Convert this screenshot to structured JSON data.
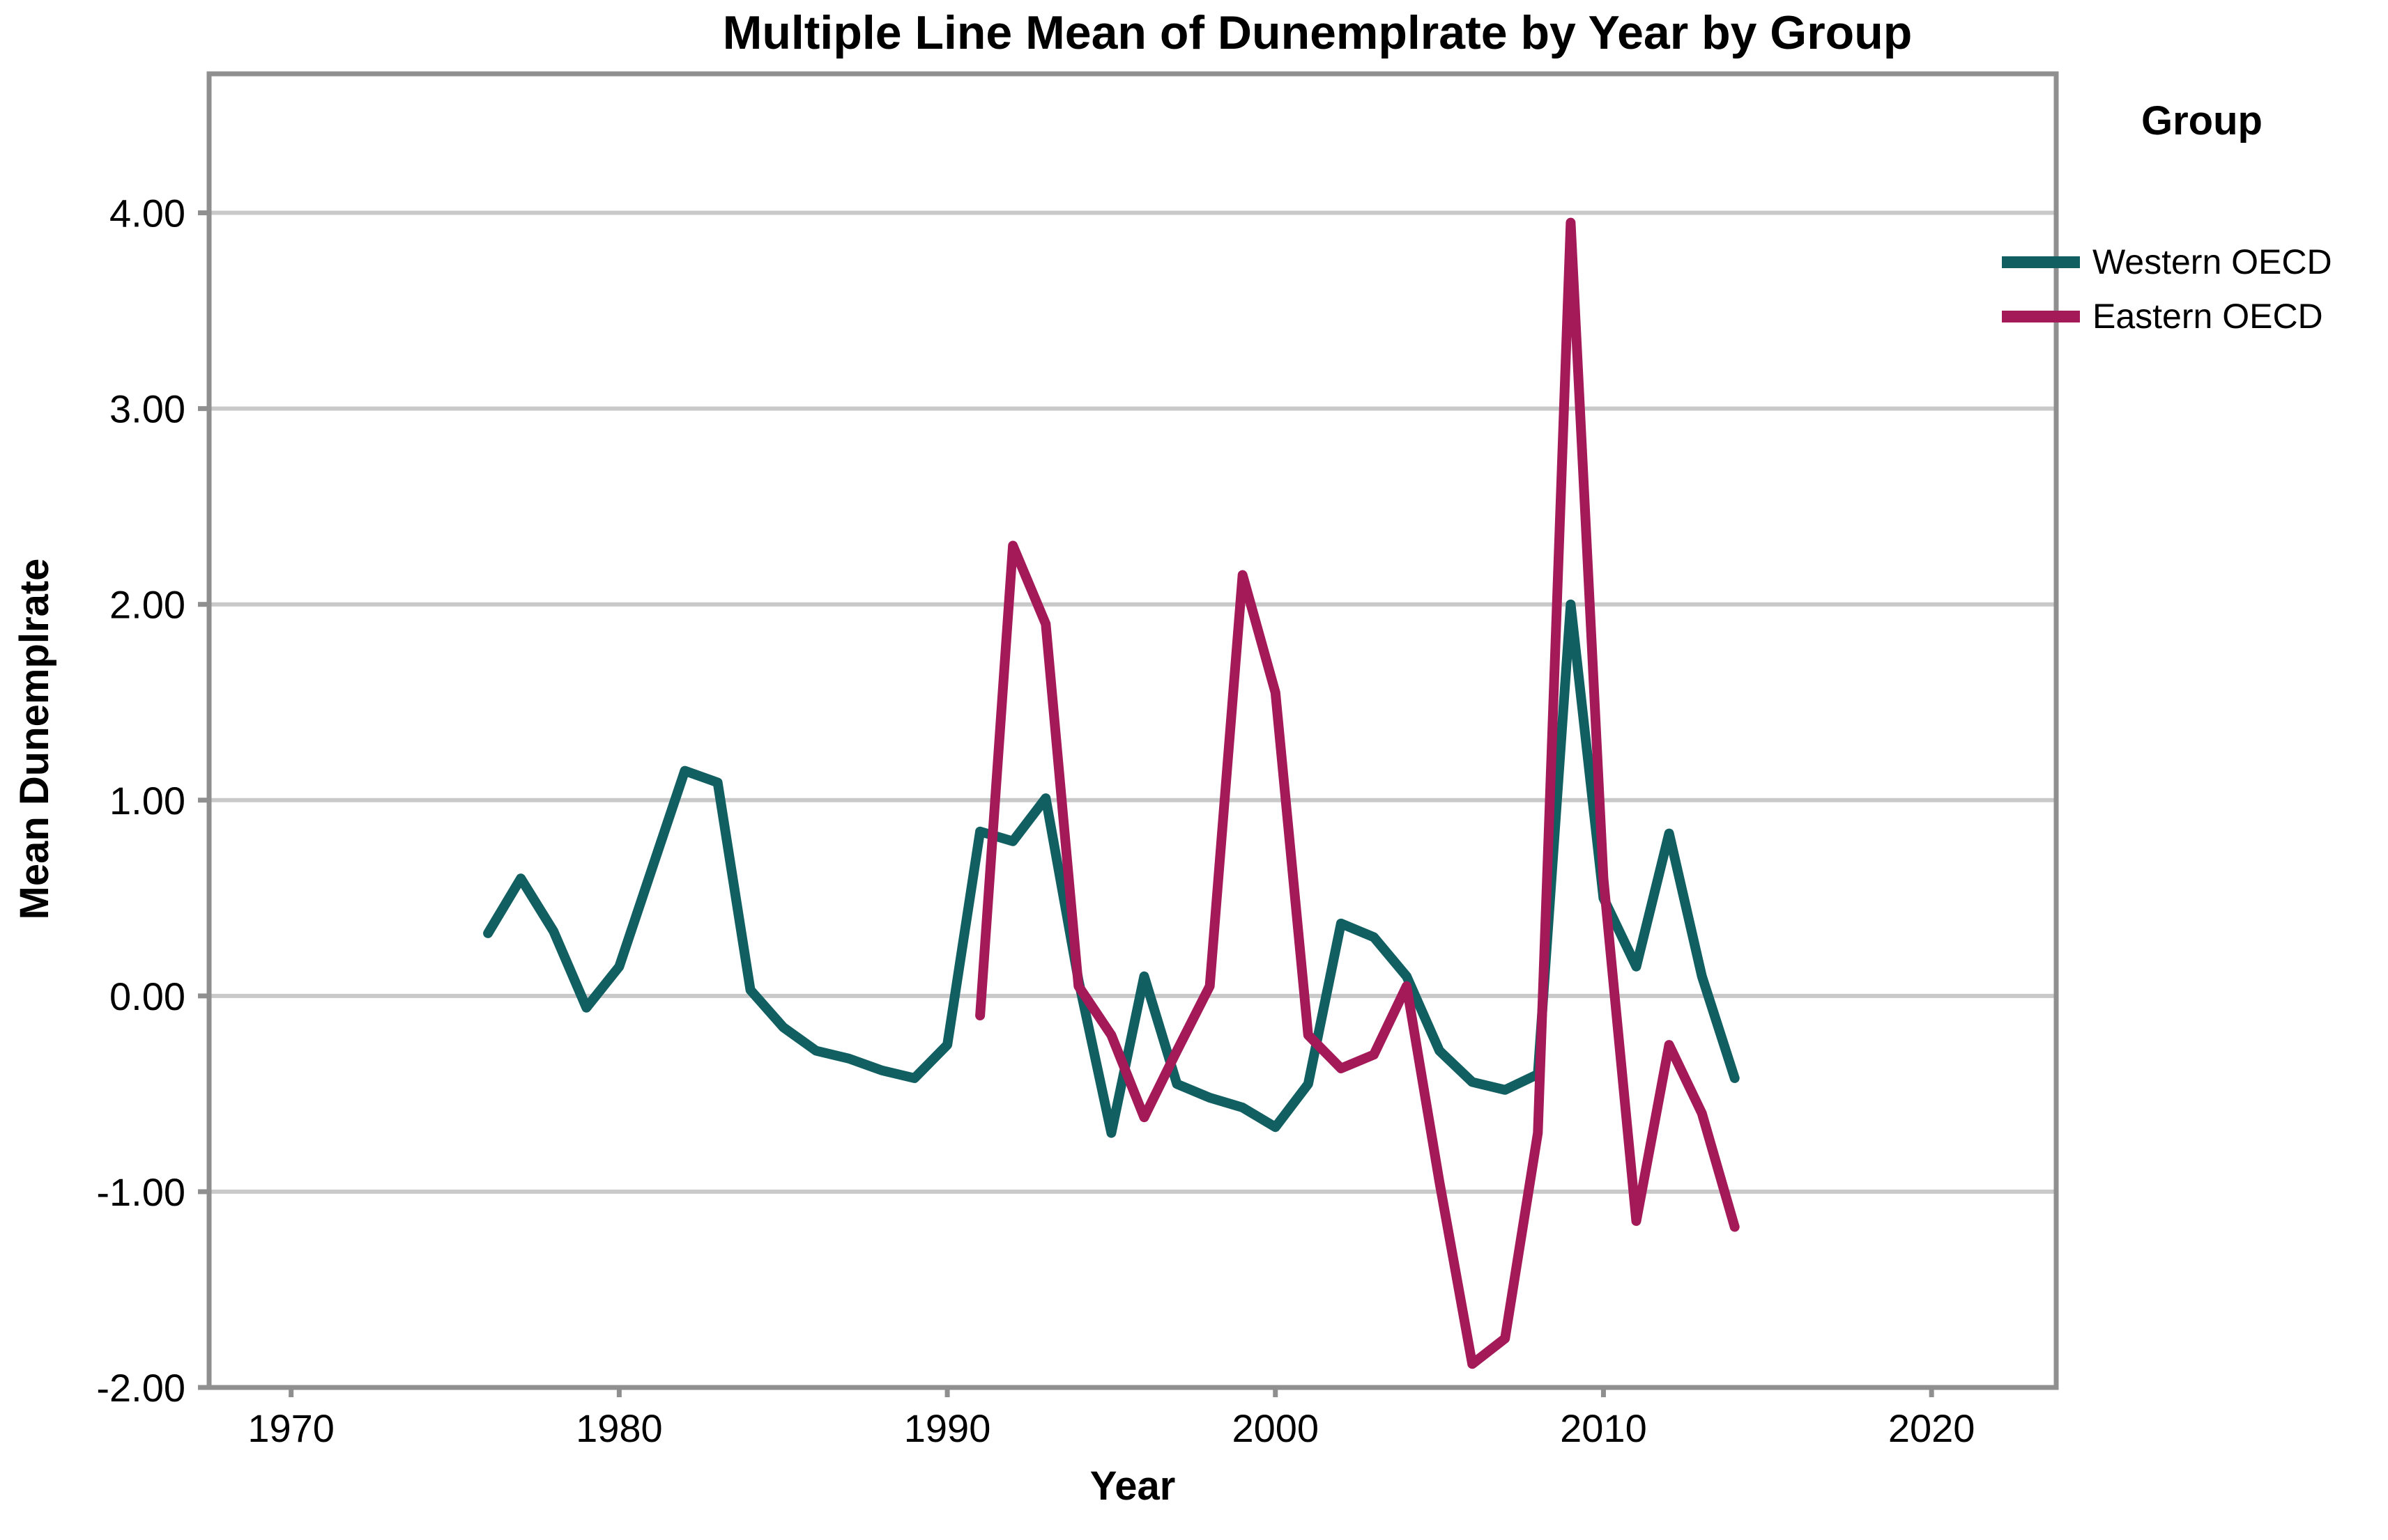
{
  "title": "Multiple Line Mean of Dunemplrate by Year by Group",
  "legend": {
    "title": "Group",
    "items": [
      {
        "label": "Western OECD",
        "color": "#125f62"
      },
      {
        "label": "Eastern OECD",
        "color": "#a41958"
      }
    ]
  },
  "colors": {
    "background": "#ffffff",
    "gridline": "#c9c9c9",
    "frame": "#8f8f8f",
    "text": "#000000"
  },
  "chart_data": {
    "type": "line",
    "title": "Multiple Line Mean of Dunemplrate by Year by Group",
    "xlabel": "Year",
    "ylabel": "Mean Dunemplrate",
    "x_range": [
      1967.5,
      2023.8
    ],
    "y_range": [
      -2.0,
      4.71
    ],
    "grid": "horizontal",
    "legend_position": "right",
    "xticks": {
      "values": [
        1970,
        1980,
        1990,
        2000,
        2010,
        2020
      ],
      "labels": [
        "1970",
        "1980",
        "1990",
        "2000",
        "2010",
        "2020"
      ]
    },
    "yticks": {
      "values": [
        4,
        3,
        2,
        1,
        0,
        -1,
        -2
      ],
      "labels": [
        "4.00",
        "3.00",
        "2.00",
        "1.00",
        "0.00",
        "-1.00",
        "-2.00"
      ]
    },
    "series": [
      {
        "name": "Western OECD",
        "color": "#125f62",
        "x": [
          1976,
          1977,
          1978,
          1979,
          1980,
          1981,
          1982,
          1983,
          1984,
          1985,
          1986,
          1987,
          1988,
          1989,
          1990,
          1991,
          1992,
          1993,
          1994,
          1995,
          1996,
          1997,
          1998,
          1999,
          2000,
          2001,
          2002,
          2003,
          2004,
          2005,
          2006,
          2007,
          2008,
          2009,
          2010,
          2011,
          2012,
          2013,
          2014
        ],
        "y": [
          0.32,
          0.6,
          0.33,
          -0.06,
          0.15,
          0.65,
          1.15,
          1.09,
          0.03,
          -0.16,
          -0.28,
          -0.32,
          -0.38,
          -0.42,
          -0.25,
          0.84,
          0.79,
          1.01,
          0.08,
          -0.7,
          0.1,
          -0.45,
          -0.52,
          -0.57,
          -0.67,
          -0.45,
          0.37,
          0.3,
          0.1,
          -0.28,
          -0.44,
          -0.48,
          -0.4,
          2.0,
          0.5,
          0.15,
          0.83,
          0.1,
          -0.42
        ]
      },
      {
        "name": "Eastern OECD",
        "color": "#a41958",
        "x": [
          1991,
          1992,
          1993,
          1994,
          1995,
          1996,
          1997,
          1998,
          1999,
          2000,
          2001,
          2002,
          2003,
          2004,
          2005,
          2006,
          2007,
          2008,
          2009,
          2010,
          2011,
          2012,
          2013,
          2014
        ],
        "y": [
          -0.1,
          2.3,
          1.9,
          0.05,
          -0.2,
          -0.62,
          -0.28,
          0.05,
          2.15,
          1.55,
          -0.2,
          -0.37,
          -0.3,
          0.05,
          -0.95,
          -1.88,
          -1.75,
          -0.7,
          3.95,
          0.6,
          -1.15,
          -0.25,
          -0.6,
          -1.18
        ]
      }
    ]
  }
}
